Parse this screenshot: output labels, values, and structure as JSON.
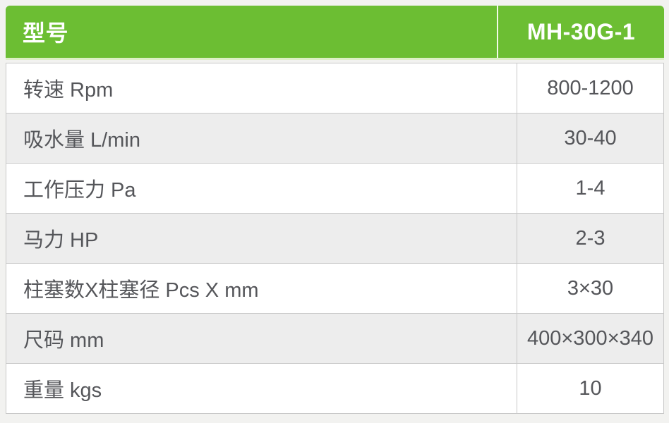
{
  "table": {
    "header": {
      "param_label": "型号",
      "model": "MH-30G-1"
    },
    "rows": [
      {
        "label": "转速 Rpm",
        "value": "800-1200"
      },
      {
        "label": "吸水量 L/min",
        "value": "30-40"
      },
      {
        "label": "工作压力 Pa",
        "value": "1-4"
      },
      {
        "label": "马力 HP",
        "value": "2-3"
      },
      {
        "label": "柱塞数X柱塞径 Pcs X mm",
        "value": "3×30"
      },
      {
        "label": "尺码 mm",
        "value": "400×300×340"
      },
      {
        "label": "重量 kgs",
        "value": "10"
      }
    ],
    "colors": {
      "header_bg": "#6cbe33",
      "header_text": "#ffffff",
      "header_underline": "#ddefc7",
      "row_bg": "#ffffff",
      "row_alt_bg": "#ededed",
      "border": "#c8c8c8",
      "body_text": "#55565a",
      "page_bg": "#f2f2f0"
    }
  }
}
